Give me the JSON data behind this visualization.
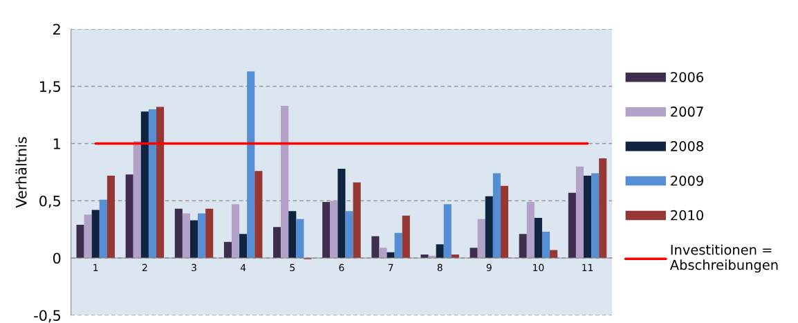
{
  "chart_data": {
    "type": "bar",
    "ylabel": "Verhältnis",
    "categories": [
      "1",
      "2",
      "3",
      "4",
      "5",
      "6",
      "7",
      "8",
      "9",
      "10",
      "11"
    ],
    "series": [
      {
        "name": "2006",
        "color": "#3f2d50",
        "values": [
          0.29,
          0.73,
          0.43,
          0.14,
          0.27,
          0.49,
          0.19,
          0.03,
          0.09,
          0.21,
          0.57
        ]
      },
      {
        "name": "2007",
        "color": "#b3a2c7",
        "values": [
          0.38,
          1.02,
          0.39,
          0.47,
          1.33,
          0.5,
          0.09,
          0.02,
          0.34,
          0.49,
          0.8
        ]
      },
      {
        "name": "2008",
        "color": "#10243f",
        "values": [
          0.42,
          1.28,
          0.33,
          0.21,
          0.41,
          0.78,
          0.05,
          0.12,
          0.54,
          0.35,
          0.72
        ]
      },
      {
        "name": "2009",
        "color": "#558ed5",
        "values": [
          0.51,
          1.3,
          0.39,
          1.63,
          0.34,
          0.41,
          0.22,
          0.47,
          0.74,
          0.23,
          0.74
        ]
      },
      {
        "name": "2010",
        "color": "#953735",
        "values": [
          0.72,
          1.32,
          0.43,
          0.76,
          -0.01,
          0.66,
          0.37,
          0.03,
          0.63,
          0.07,
          0.87
        ]
      },
      {
        "name": "Investitionen =\nAbschreibungen",
        "color": "#ff0000",
        "type": "line",
        "values": [
          1,
          1,
          1,
          1,
          1,
          1,
          1,
          1,
          1,
          1,
          1
        ]
      }
    ],
    "ylim": [
      -0.5,
      2
    ],
    "yticks": [
      {
        "value": -0.5,
        "label": "-0,5"
      },
      0,
      {
        "value": 0.5,
        "label": "0,5"
      },
      1,
      {
        "value": 1.5,
        "label": "1,5"
      },
      2
    ],
    "grid": "y",
    "legend": "right",
    "line_style": "solid"
  }
}
